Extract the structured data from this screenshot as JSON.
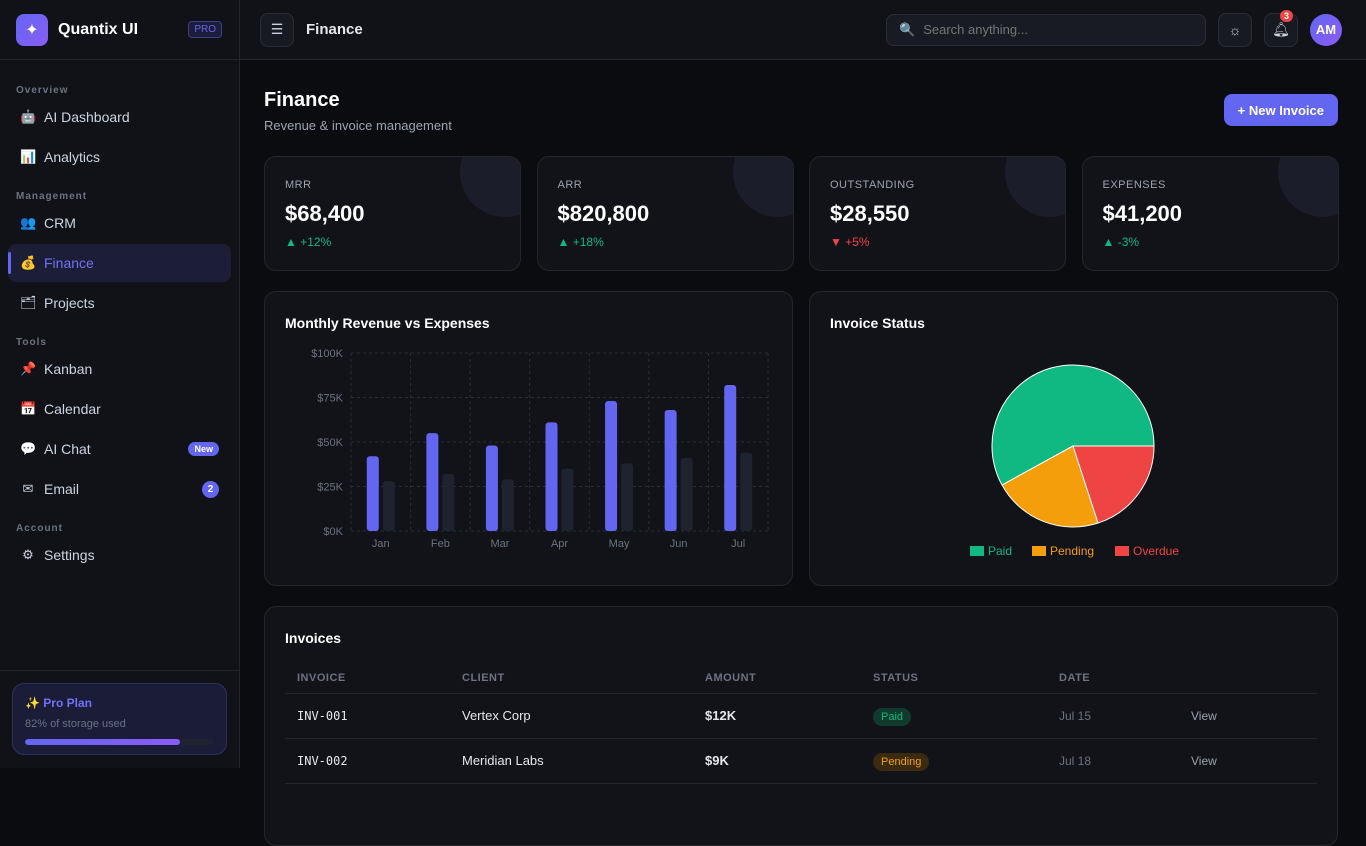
{
  "brand": {
    "name": "Quantix UI",
    "tier": "PRO",
    "logo_icon": "sparkle-icon"
  },
  "sidebar": {
    "sections": [
      {
        "label": "Overview",
        "items": [
          {
            "label": "AI Dashboard",
            "icon": "🤖"
          },
          {
            "label": "Analytics",
            "icon": "📊"
          }
        ]
      },
      {
        "label": "Management",
        "items": [
          {
            "label": "CRM",
            "icon": "👥"
          },
          {
            "label": "Finance",
            "icon": "💰",
            "active": true
          },
          {
            "label": "Projects",
            "icon": "🗂"
          }
        ]
      },
      {
        "label": "Tools",
        "items": [
          {
            "label": "Kanban",
            "icon": "📌"
          },
          {
            "label": "Calendar",
            "icon": "📅"
          },
          {
            "label": "AI Chat",
            "icon": "💬",
            "badge": "New"
          },
          {
            "label": "Email",
            "icon": "✉",
            "badge": "2"
          }
        ]
      },
      {
        "label": "Account",
        "items": [
          {
            "label": "Settings",
            "icon": "⚙"
          }
        ]
      }
    ],
    "plan": {
      "title": "✨ Pro Plan",
      "subtitle": "82% of storage used",
      "storage_used_percent": 82
    }
  },
  "topbar": {
    "title": "Finance",
    "search_placeholder": "Search anything...",
    "notifications": "3",
    "avatar": "AM"
  },
  "page": {
    "title": "Finance",
    "subtitle": "Revenue & invoice management",
    "new_button": "+ New Invoice"
  },
  "stats": [
    {
      "label": "MRR",
      "value": "$68,400",
      "change": "▲ +12%",
      "dir": "up"
    },
    {
      "label": "ARR",
      "value": "$820,800",
      "change": "▲ +18%",
      "dir": "up"
    },
    {
      "label": "OUTSTANDING",
      "value": "$28,550",
      "change": "▼ +5%",
      "dir": "dn"
    },
    {
      "label": "EXPENSES",
      "value": "$41,200",
      "change": "▲ -3%",
      "dir": "up"
    }
  ],
  "chart_data": [
    {
      "type": "bar",
      "title": "Monthly Revenue vs Expenses",
      "categories": [
        "Jan",
        "Feb",
        "Mar",
        "Apr",
        "May",
        "Jun",
        "Jul"
      ],
      "series": [
        {
          "name": "Revenue",
          "color": "#6366f1",
          "values": [
            42000,
            55000,
            48000,
            61000,
            73000,
            68000,
            82000
          ]
        },
        {
          "name": "Expenses",
          "color": "#1e2330",
          "values": [
            28000,
            32000,
            29000,
            35000,
            38000,
            41000,
            44000
          ]
        }
      ],
      "yticks": [
        "$0K",
        "$25K",
        "$50K",
        "$75K",
        "$100K"
      ],
      "ylim": [
        0,
        100000
      ],
      "grid": true
    },
    {
      "type": "pie",
      "title": "Invoice Status",
      "slices": [
        {
          "name": "Paid",
          "value": 58,
          "color": "#10b981"
        },
        {
          "name": "Pending",
          "value": 22,
          "color": "#f59e0b"
        },
        {
          "name": "Overdue",
          "value": 20,
          "color": "#ef4444"
        }
      ],
      "legend": "bottom"
    }
  ],
  "invoices": {
    "title": "Invoices",
    "columns": [
      "INVOICE",
      "CLIENT",
      "AMOUNT",
      "STATUS",
      "DATE",
      ""
    ],
    "rows": [
      {
        "id": "INV-001",
        "client": "Vertex Corp",
        "amount": "$12K",
        "status": "Paid",
        "date": "Jul 15",
        "action": "View"
      },
      {
        "id": "INV-002",
        "client": "Meridian Labs",
        "amount": "$9K",
        "status": "Pending",
        "date": "Jul 18",
        "action": "View"
      }
    ]
  }
}
